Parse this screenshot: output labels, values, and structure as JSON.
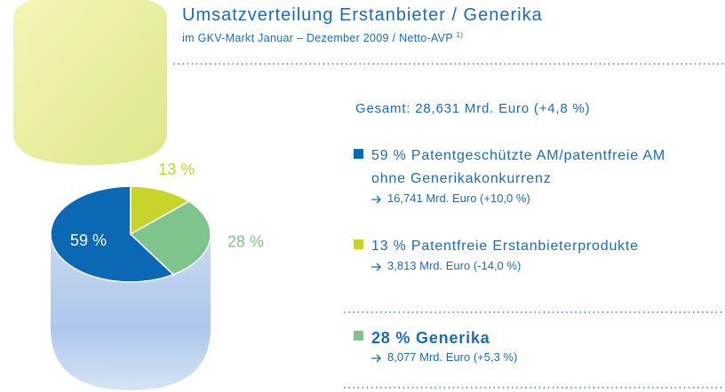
{
  "chart_data": {
    "type": "pie",
    "title": "Umsatzverteilung Erstanbieter / Generika",
    "subtitle": "im GKV-Markt Januar – Dezember 2009 / Netto-AVP",
    "footnote_marker": "1)",
    "total_label": "Gesamt: 28,631 Mrd. Euro (+4,8 %)",
    "categories": [
      "Patentgeschützte AM/patentfreie AM ohne Generikakonkurrenz",
      "Patentfreie Erstanbieterprodukte",
      "Generika"
    ],
    "values": [
      59,
      13,
      28
    ],
    "value_labels": [
      "59 %",
      "13 %",
      "28 %"
    ],
    "details": [
      "16,741 Mrd. Euro (+10,0 %)",
      "3,813 Mrd. Euro (-14,0 %)",
      "8,077 Mrd. Euro (+5,3 %)"
    ],
    "colors": [
      "#0a68b4",
      "#c6d42c",
      "#7fc48c"
    ]
  }
}
